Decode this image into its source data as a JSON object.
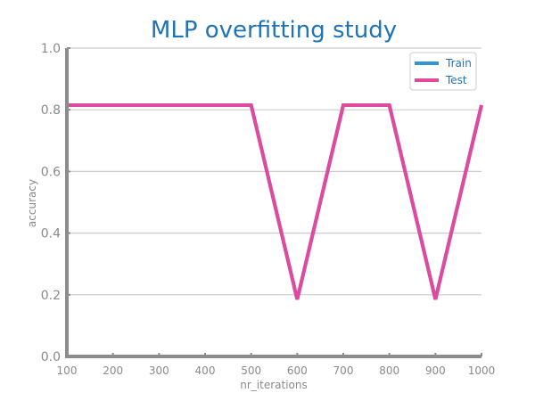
{
  "chart_data": {
    "type": "line",
    "title": "MLP overfitting study",
    "xlabel": "nr_iterations",
    "ylabel": "accuracy",
    "x": [
      100,
      200,
      300,
      400,
      500,
      600,
      700,
      800,
      900,
      1000
    ],
    "xticks": [
      "100",
      "200",
      "300",
      "400",
      "500",
      "600",
      "700",
      "800",
      "900",
      "1000"
    ],
    "yticks": [
      "0.0",
      "0.2",
      "0.4",
      "0.6",
      "0.8",
      "1.0"
    ],
    "xlim": [
      100,
      1000
    ],
    "ylim": [
      0,
      1
    ],
    "grid": true,
    "legend_position": "top-right",
    "series": [
      {
        "name": "Train",
        "color": "#2f97d1",
        "values": [
          0.815,
          0.815,
          0.815,
          0.815,
          0.815,
          0.185,
          0.815,
          0.815,
          0.185,
          0.815
        ]
      },
      {
        "name": "Test",
        "color": "#e0499e",
        "values": [
          0.815,
          0.815,
          0.815,
          0.815,
          0.815,
          0.185,
          0.815,
          0.815,
          0.185,
          0.815
        ]
      }
    ]
  },
  "colors": {
    "title": "#1f73b7",
    "grid": "#cccccc",
    "axis": "#8c8c8c",
    "legend_text": "#1f73b7"
  }
}
